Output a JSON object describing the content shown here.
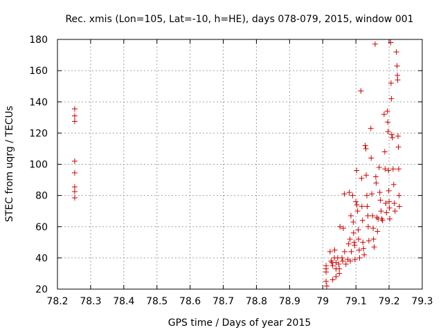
{
  "chart_data": {
    "type": "scatter",
    "title": "Rec. xmis (Lon=105, Lat=-10, h=HE), days 078-079, 2015, window 001",
    "xlabel": "GPS time / Days of year 2015",
    "ylabel": "STEC from uqrg / TECUs",
    "xlim": [
      78.2,
      79.3
    ],
    "ylim": [
      20,
      180
    ],
    "xticks": [
      "78.2",
      "78.3",
      "78.4",
      "78.5",
      "78.6",
      "78.7",
      "78.8",
      "78.9",
      "79",
      "79.1",
      "79.2",
      "79.3"
    ],
    "yticks": [
      "20",
      "40",
      "60",
      "80",
      "100",
      "120",
      "140",
      "160",
      "180"
    ],
    "grid": true,
    "marker_color": "#cc0000",
    "series": [
      {
        "points": [
          [
            78.252,
            135.5
          ],
          [
            78.252,
            131
          ],
          [
            78.252,
            127.5
          ],
          [
            78.252,
            102
          ],
          [
            78.252,
            94.5
          ],
          [
            78.252,
            85.5
          ],
          [
            78.252,
            82.5
          ],
          [
            78.252,
            78.5
          ],
          [
            79.01,
            35
          ],
          [
            79.01,
            33
          ],
          [
            79.01,
            31
          ],
          [
            79.01,
            25
          ],
          [
            79.012,
            22
          ],
          [
            79.022,
            44
          ],
          [
            79.025,
            38
          ],
          [
            79.028,
            37
          ],
          [
            79.03,
            35
          ],
          [
            79.03,
            26
          ],
          [
            79.035,
            40
          ],
          [
            79.036,
            45
          ],
          [
            79.04,
            37
          ],
          [
            79.04,
            33
          ],
          [
            79.04,
            28
          ],
          [
            79.045,
            40
          ],
          [
            79.048,
            36
          ],
          [
            79.05,
            33
          ],
          [
            79.05,
            30
          ],
          [
            79.052,
            60
          ],
          [
            79.058,
            40
          ],
          [
            79.06,
            38
          ],
          [
            79.062,
            59
          ],
          [
            79.065,
            81
          ],
          [
            79.066,
            44
          ],
          [
            79.07,
            36
          ],
          [
            79.075,
            39
          ],
          [
            79.078,
            49
          ],
          [
            79.08,
            82
          ],
          [
            79.082,
            52
          ],
          [
            79.083,
            38
          ],
          [
            79.085,
            67
          ],
          [
            79.086,
            44
          ],
          [
            79.09,
            80
          ],
          [
            79.092,
            63
          ],
          [
            79.093,
            56
          ],
          [
            79.095,
            50
          ],
          [
            79.096,
            48
          ],
          [
            79.097,
            39
          ],
          [
            79.1,
            76
          ],
          [
            79.102,
            96
          ],
          [
            79.103,
            74
          ],
          [
            79.105,
            70
          ],
          [
            79.107,
            58
          ],
          [
            79.108,
            52
          ],
          [
            79.11,
            45
          ],
          [
            79.111,
            40
          ],
          [
            79.115,
            147
          ],
          [
            79.117,
            91
          ],
          [
            79.118,
            73
          ],
          [
            79.12,
            64
          ],
          [
            79.121,
            50
          ],
          [
            79.123,
            46
          ],
          [
            79.125,
            42
          ],
          [
            79.128,
            112
          ],
          [
            79.13,
            110
          ],
          [
            79.131,
            93
          ],
          [
            79.133,
            80
          ],
          [
            79.134,
            73
          ],
          [
            79.136,
            67
          ],
          [
            79.137,
            60
          ],
          [
            79.139,
            51
          ],
          [
            79.145,
            123
          ],
          [
            79.146,
            104
          ],
          [
            79.148,
            81
          ],
          [
            79.15,
            67
          ],
          [
            79.152,
            59
          ],
          [
            79.153,
            52
          ],
          [
            79.155,
            47
          ],
          [
            79.158,
            177
          ],
          [
            79.16,
            92
          ],
          [
            79.161,
            88
          ],
          [
            79.163,
            66
          ],
          [
            79.165,
            57
          ],
          [
            79.167,
            65
          ],
          [
            79.17,
            98
          ],
          [
            79.172,
            82
          ],
          [
            79.174,
            77
          ],
          [
            79.176,
            70
          ],
          [
            79.178,
            65
          ],
          [
            79.18,
            64
          ],
          [
            79.185,
            132
          ],
          [
            79.187,
            108
          ],
          [
            79.188,
            97
          ],
          [
            79.19,
            75
          ],
          [
            79.192,
            69
          ],
          [
            79.195,
            134
          ],
          [
            79.196,
            127
          ],
          [
            79.197,
            121
          ],
          [
            79.198,
            96
          ],
          [
            79.199,
            83
          ],
          [
            79.2,
            76
          ],
          [
            79.201,
            72
          ],
          [
            79.202,
            65
          ],
          [
            79.205,
            178
          ],
          [
            79.206,
            152
          ],
          [
            79.207,
            142
          ],
          [
            79.208,
            119
          ],
          [
            79.21,
            117
          ],
          [
            79.212,
            97
          ],
          [
            79.214,
            87
          ],
          [
            79.216,
            75
          ],
          [
            79.218,
            70
          ],
          [
            79.222,
            172
          ],
          [
            79.224,
            163
          ],
          [
            79.225,
            157
          ],
          [
            79.226,
            154
          ],
          [
            79.227,
            118
          ],
          [
            79.228,
            111
          ],
          [
            79.229,
            97
          ],
          [
            79.23,
            80
          ],
          [
            79.231,
            73
          ]
        ]
      }
    ]
  }
}
